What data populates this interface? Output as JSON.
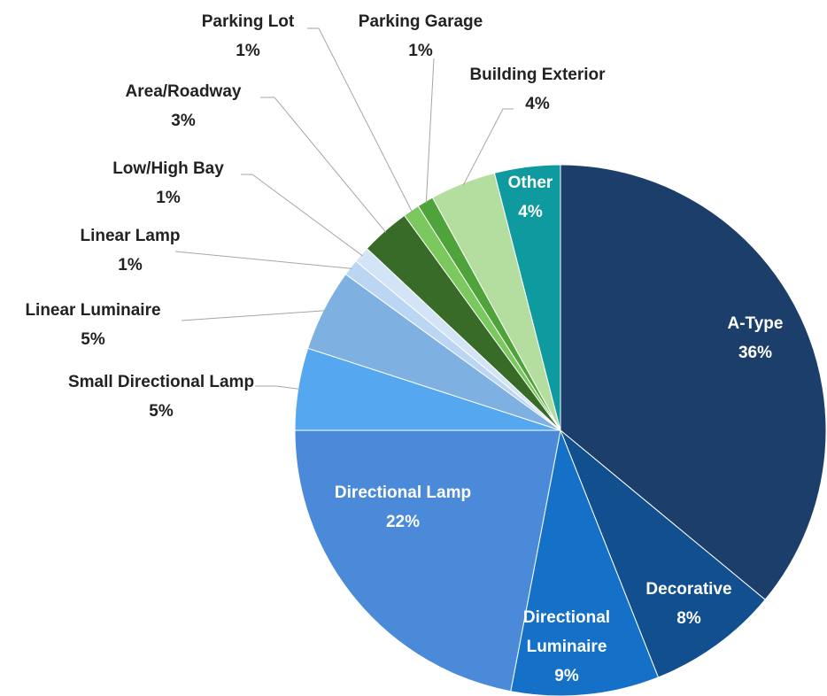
{
  "chart_data": {
    "type": "pie",
    "categories": [
      "A-Type",
      "Decorative",
      "Directional Luminaire",
      "Directional Lamp",
      "Small Directional Lamp",
      "Linear Luminaire",
      "Linear Lamp",
      "Low/High Bay",
      "Area/Roadway",
      "Parking Lot",
      "Parking Garage",
      "Building Exterior",
      "Other"
    ],
    "values": [
      36,
      8,
      9,
      22,
      5,
      5,
      1,
      1,
      3,
      1,
      1,
      4,
      4
    ],
    "value_labels": [
      "36%",
      "8%",
      "9%",
      "22%",
      "5%",
      "5%",
      "1%",
      "1%",
      "3%",
      "1%",
      "1%",
      "4%",
      "4%"
    ],
    "colors": [
      "#1b3e6a",
      "#124f8e",
      "#1570c8",
      "#4a8ad8",
      "#55a8f0",
      "#7eb0e2",
      "#bad6f2",
      "#d2e4f6",
      "#376b27",
      "#7ac85e",
      "#4ea33a",
      "#b4dea0",
      "#0e9a9e"
    ]
  }
}
